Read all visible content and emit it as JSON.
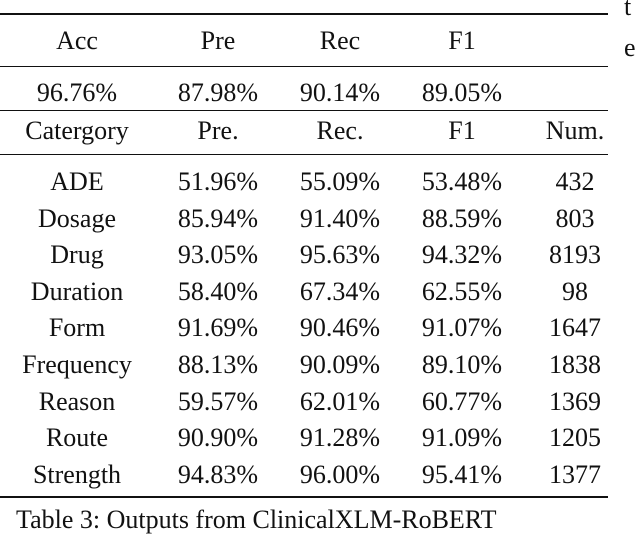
{
  "summary": {
    "headers": [
      "Acc",
      "Pre",
      "Rec",
      "F1"
    ],
    "values": [
      "96.76%",
      "87.98%",
      "90.14%",
      "89.05%"
    ]
  },
  "category_table": {
    "headers": [
      "Catergory",
      "Pre.",
      "Rec.",
      "F1",
      "Num."
    ],
    "rows": [
      [
        "ADE",
        "51.96%",
        "55.09%",
        "53.48%",
        "432"
      ],
      [
        "Dosage",
        "85.94%",
        "91.40%",
        "88.59%",
        "803"
      ],
      [
        "Drug",
        "93.05%",
        "95.63%",
        "94.32%",
        "8193"
      ],
      [
        "Duration",
        "58.40%",
        "67.34%",
        "62.55%",
        "98"
      ],
      [
        "Form",
        "91.69%",
        "90.46%",
        "91.07%",
        "1647"
      ],
      [
        "Frequency",
        "88.13%",
        "90.09%",
        "89.10%",
        "1838"
      ],
      [
        "Reason",
        "59.57%",
        "62.01%",
        "60.77%",
        "1369"
      ],
      [
        "Route",
        "90.90%",
        "91.28%",
        "91.09%",
        "1205"
      ],
      [
        "Strength",
        "94.83%",
        "96.00%",
        "95.41%",
        "1377"
      ]
    ]
  },
  "side_text": [
    "t",
    "e"
  ],
  "caption": "Table 3: Outputs from ClinicalXLM-RoBERT"
}
